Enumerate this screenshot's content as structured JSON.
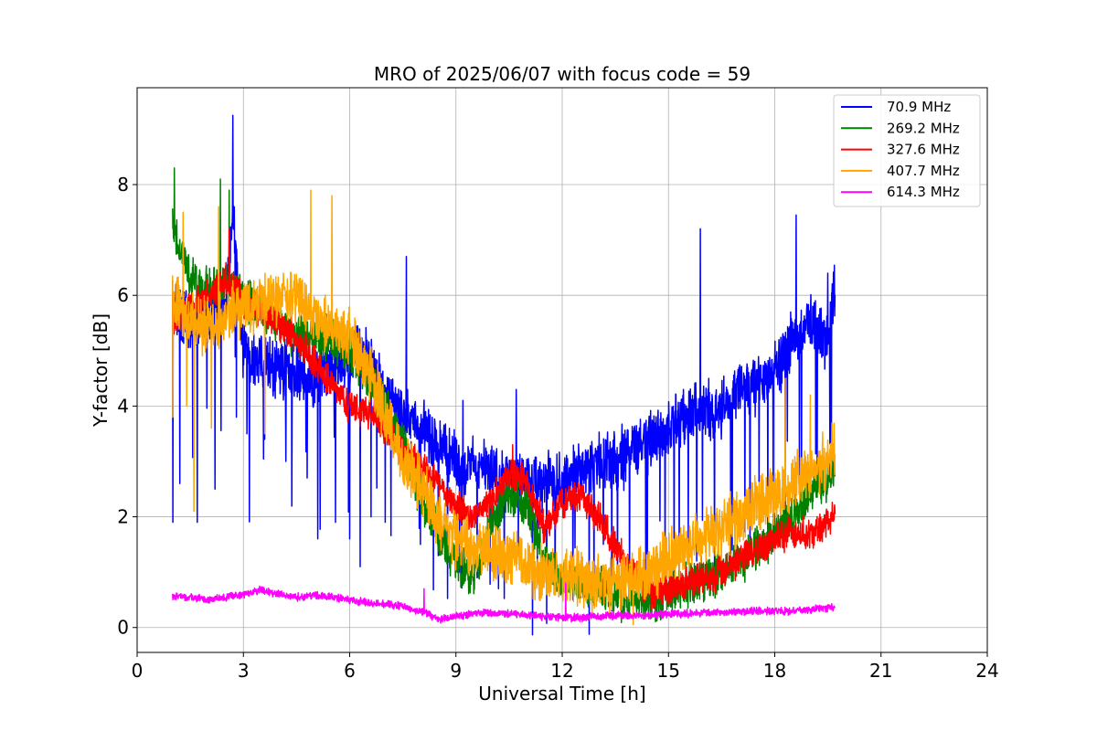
{
  "chart_data": {
    "type": "line",
    "title": "MRO of 2025/06/07 with focus code = 59",
    "xlabel": "Universal Time [h]",
    "ylabel": "Y-factor [dB]",
    "xlim": [
      0,
      24
    ],
    "ylim": [
      -0.45,
      9.75
    ],
    "xticks": [
      0,
      3,
      6,
      9,
      12,
      15,
      18,
      21,
      24
    ],
    "yticks": [
      0,
      2,
      4,
      6,
      8
    ],
    "grid": true,
    "legend_position": "top-right",
    "series": [
      {
        "name": " 70.9 MHz",
        "color": "#0000ff",
        "x": [
          1.0,
          1.5,
          2.0,
          2.5,
          2.7,
          3.0,
          3.5,
          4.0,
          4.5,
          5.0,
          5.5,
          6.0,
          6.5,
          7.0,
          7.5,
          8.0,
          8.5,
          9.0,
          9.5,
          10.0,
          10.5,
          11.0,
          11.5,
          12.0,
          12.5,
          13.0,
          13.5,
          14.0,
          14.5,
          15.0,
          15.5,
          16.0,
          16.5,
          17.0,
          17.5,
          18.0,
          18.5,
          19.0,
          19.5,
          19.7
        ],
        "y": [
          5.8,
          5.5,
          5.6,
          5.8,
          7.5,
          4.9,
          4.8,
          4.6,
          4.7,
          4.5,
          4.7,
          4.9,
          4.9,
          4.2,
          3.8,
          3.7,
          3.3,
          3.0,
          2.9,
          2.8,
          2.7,
          2.7,
          2.6,
          2.6,
          2.8,
          2.9,
          3.0,
          3.2,
          3.4,
          3.6,
          3.8,
          3.9,
          4.0,
          4.2,
          4.4,
          4.6,
          5.2,
          5.5,
          5.1,
          6.2
        ],
        "dips": [
          [
            1.0,
            1.9
          ],
          [
            1.2,
            2.6
          ],
          [
            1.7,
            1.9
          ],
          [
            2.2,
            2.5
          ],
          [
            2.8,
            3.8
          ],
          [
            3.1,
            3.5
          ],
          [
            3.6,
            3.4
          ],
          [
            4.2,
            3.0
          ],
          [
            4.8,
            2.7
          ],
          [
            5.1,
            1.6
          ],
          [
            5.6,
            1.9
          ],
          [
            6.0,
            1.6
          ],
          [
            6.3,
            1.1
          ],
          [
            6.6,
            2.0
          ],
          [
            7.0,
            1.9
          ],
          [
            7.6,
            1.6
          ],
          [
            8.0,
            1.5
          ],
          [
            8.5,
            1.3
          ],
          [
            9.1,
            1.0
          ],
          [
            9.6,
            0.9
          ],
          [
            10.2,
            0.7
          ],
          [
            10.7,
            0.9
          ],
          [
            11.3,
            0.8
          ],
          [
            11.8,
            0.6
          ],
          [
            12.3,
            0.5
          ],
          [
            12.9,
            0.4
          ],
          [
            13.4,
            0.3
          ],
          [
            13.9,
            0.4
          ],
          [
            14.4,
            0.6
          ],
          [
            14.9,
            0.9
          ],
          [
            15.3,
            0.9
          ],
          [
            15.8,
            1.2
          ],
          [
            16.3,
            1.1
          ],
          [
            16.8,
            1.4
          ],
          [
            17.3,
            1.3
          ],
          [
            17.8,
            1.5
          ],
          [
            18.3,
            1.8
          ],
          [
            18.7,
            2.4
          ],
          [
            19.2,
            2.8
          ],
          [
            19.6,
            2.6
          ]
        ],
        "spikes": [
          [
            2.7,
            9.25
          ],
          [
            7.6,
            6.7
          ],
          [
            9.2,
            4.1
          ],
          [
            10.7,
            4.3
          ],
          [
            12.7,
            2.9
          ],
          [
            15.9,
            7.2
          ],
          [
            18.6,
            7.45
          ],
          [
            19.5,
            6.4
          ]
        ]
      },
      {
        "name": "269.2 MHz",
        "color": "#008000",
        "x": [
          1.0,
          1.5,
          2.0,
          2.5,
          3.0,
          3.5,
          4.0,
          4.5,
          5.0,
          5.5,
          6.0,
          6.5,
          7.0,
          7.5,
          8.0,
          8.5,
          9.0,
          9.5,
          10.0,
          10.5,
          11.0,
          11.5,
          12.0,
          12.5,
          13.0,
          13.5,
          14.0,
          14.5,
          15.0,
          15.5,
          16.0,
          16.5,
          17.0,
          17.5,
          18.0,
          18.5,
          19.0,
          19.5,
          19.7
        ],
        "y": [
          7.2,
          6.3,
          6.1,
          6.2,
          5.9,
          5.8,
          5.5,
          5.3,
          5.3,
          5.2,
          5.0,
          4.6,
          4.0,
          3.3,
          2.4,
          1.7,
          1.1,
          0.9,
          1.9,
          2.4,
          2.2,
          1.2,
          0.9,
          0.8,
          0.7,
          0.6,
          0.5,
          0.5,
          0.6,
          0.7,
          0.9,
          1.0,
          1.2,
          1.4,
          1.7,
          2.0,
          2.4,
          2.7,
          2.9
        ],
        "dips": [],
        "spikes": [
          [
            1.05,
            8.3
          ],
          [
            2.35,
            8.1
          ],
          [
            2.6,
            7.9
          ]
        ]
      },
      {
        "name": "327.6 MHz",
        "color": "#ff0000",
        "x": [
          1.0,
          1.5,
          2.0,
          2.5,
          3.0,
          3.5,
          4.0,
          4.5,
          5.0,
          5.5,
          6.0,
          6.5,
          7.0,
          7.5,
          8.0,
          8.5,
          9.0,
          9.5,
          10.0,
          10.5,
          11.0,
          11.5,
          12.0,
          12.5,
          13.0,
          13.5,
          14.0,
          14.5,
          15.0,
          15.5,
          16.0,
          16.5,
          17.0,
          17.5,
          18.0,
          18.5,
          19.0,
          19.5,
          19.7
        ],
        "y": [
          5.5,
          5.8,
          6.0,
          6.3,
          5.9,
          5.7,
          5.5,
          5.2,
          4.8,
          4.4,
          4.0,
          3.9,
          3.6,
          3.2,
          2.9,
          2.6,
          2.2,
          2.0,
          2.3,
          2.8,
          2.6,
          1.8,
          2.2,
          2.4,
          2.0,
          1.5,
          1.0,
          0.6,
          0.7,
          0.8,
          0.9,
          1.0,
          1.2,
          1.4,
          1.6,
          1.7,
          1.7,
          1.9,
          2.1
        ],
        "dips": [],
        "spikes": [
          [
            2.6,
            7.2
          ],
          [
            10.6,
            3.3
          ]
        ]
      },
      {
        "name": "407.7 MHz",
        "color": "#ffa500",
        "x": [
          1.0,
          1.5,
          2.0,
          2.5,
          3.0,
          3.5,
          4.0,
          4.5,
          5.0,
          5.5,
          6.0,
          6.5,
          7.0,
          7.5,
          8.0,
          8.5,
          9.0,
          9.5,
          10.0,
          10.5,
          11.0,
          11.5,
          12.0,
          12.5,
          13.0,
          13.5,
          14.0,
          14.5,
          15.0,
          15.5,
          16.0,
          16.5,
          17.0,
          17.5,
          18.0,
          18.5,
          19.0,
          19.5,
          19.7
        ],
        "y": [
          5.9,
          5.6,
          5.4,
          5.6,
          5.8,
          5.9,
          6.0,
          6.0,
          5.6,
          5.4,
          5.2,
          4.7,
          3.9,
          3.1,
          2.6,
          2.0,
          1.6,
          1.4,
          1.4,
          1.3,
          1.1,
          1.0,
          0.9,
          0.9,
          0.8,
          0.8,
          0.9,
          1.0,
          1.3,
          1.5,
          1.7,
          1.8,
          2.0,
          2.2,
          2.4,
          2.6,
          2.8,
          3.0,
          3.2
        ],
        "dips": [
          [
            1.0,
            3.8
          ],
          [
            1.4,
            4.0
          ],
          [
            1.6,
            2.1
          ],
          [
            2.1,
            3.6
          ],
          [
            3.6,
            3.5
          ],
          [
            14.0,
            0.05
          ]
        ],
        "spikes": [
          [
            1.3,
            7.5
          ],
          [
            2.3,
            7.6
          ],
          [
            4.9,
            7.9
          ],
          [
            5.5,
            7.8
          ],
          [
            18.3,
            4.5
          ],
          [
            19.0,
            4.2
          ]
        ]
      },
      {
        "name": "614.3 MHz",
        "color": "#ff00ff",
        "x": [
          1.0,
          1.5,
          2.0,
          2.5,
          3.0,
          3.5,
          4.0,
          4.5,
          5.0,
          5.5,
          6.0,
          6.5,
          7.0,
          7.5,
          8.0,
          8.5,
          9.0,
          9.5,
          10.0,
          10.5,
          11.0,
          11.5,
          12.0,
          12.5,
          13.0,
          13.5,
          14.0,
          14.5,
          15.0,
          15.5,
          16.0,
          16.5,
          17.0,
          17.5,
          18.0,
          18.5,
          19.0,
          19.5,
          19.7
        ],
        "y": [
          0.55,
          0.55,
          0.5,
          0.55,
          0.6,
          0.68,
          0.6,
          0.55,
          0.58,
          0.55,
          0.5,
          0.45,
          0.42,
          0.38,
          0.3,
          0.15,
          0.2,
          0.25,
          0.27,
          0.25,
          0.23,
          0.2,
          0.18,
          0.18,
          0.2,
          0.22,
          0.22,
          0.22,
          0.25,
          0.25,
          0.27,
          0.28,
          0.28,
          0.3,
          0.3,
          0.3,
          0.32,
          0.35,
          0.38
        ],
        "dips": [],
        "spikes": [
          [
            8.1,
            0.7
          ],
          [
            12.1,
            0.8
          ]
        ]
      }
    ]
  }
}
